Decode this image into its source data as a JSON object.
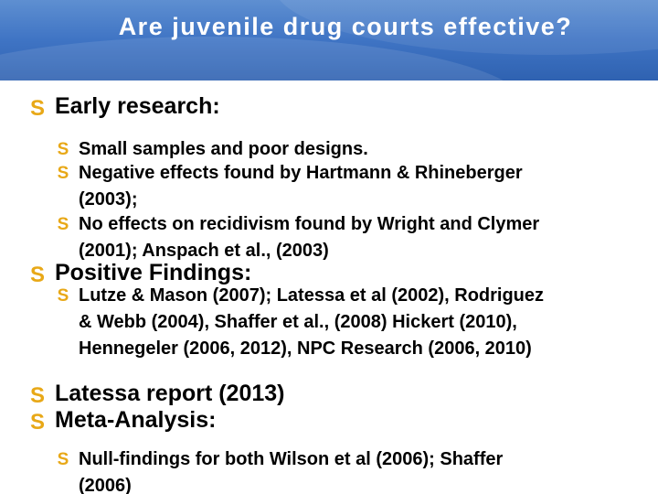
{
  "slide": {
    "title": "Are juvenile drug courts effective?",
    "bullet_glyph": "S",
    "bullet_color": "#e8a817",
    "header_color": "#3f74c4"
  },
  "sections": [
    {
      "heading": "Early research:",
      "items": [
        [
          "Small samples and poor designs."
        ],
        [
          "Negative effects found by Hartmann & Rhineberger",
          "(2003);"
        ],
        [
          "No effects on recidivism found by Wright and Clymer",
          "(2001); Anspach et al., (2003)"
        ]
      ]
    },
    {
      "heading": "Positive Findings:",
      "items": [
        [
          "Lutze & Mason (2007); Latessa et al (2002), Rodriguez",
          "& Webb (2004), Shaffer et al., (2008) Hickert (2010),",
          "Hennegeler (2006, 2012), NPC Research (2006, 2010)"
        ]
      ]
    },
    {
      "heading": "Latessa report (2013)",
      "items": []
    },
    {
      "heading": "Meta-Analysis:",
      "items": [
        [
          "Null-findings for both Wilson et al (2006); Shaffer",
          "(2006)"
        ]
      ]
    }
  ]
}
